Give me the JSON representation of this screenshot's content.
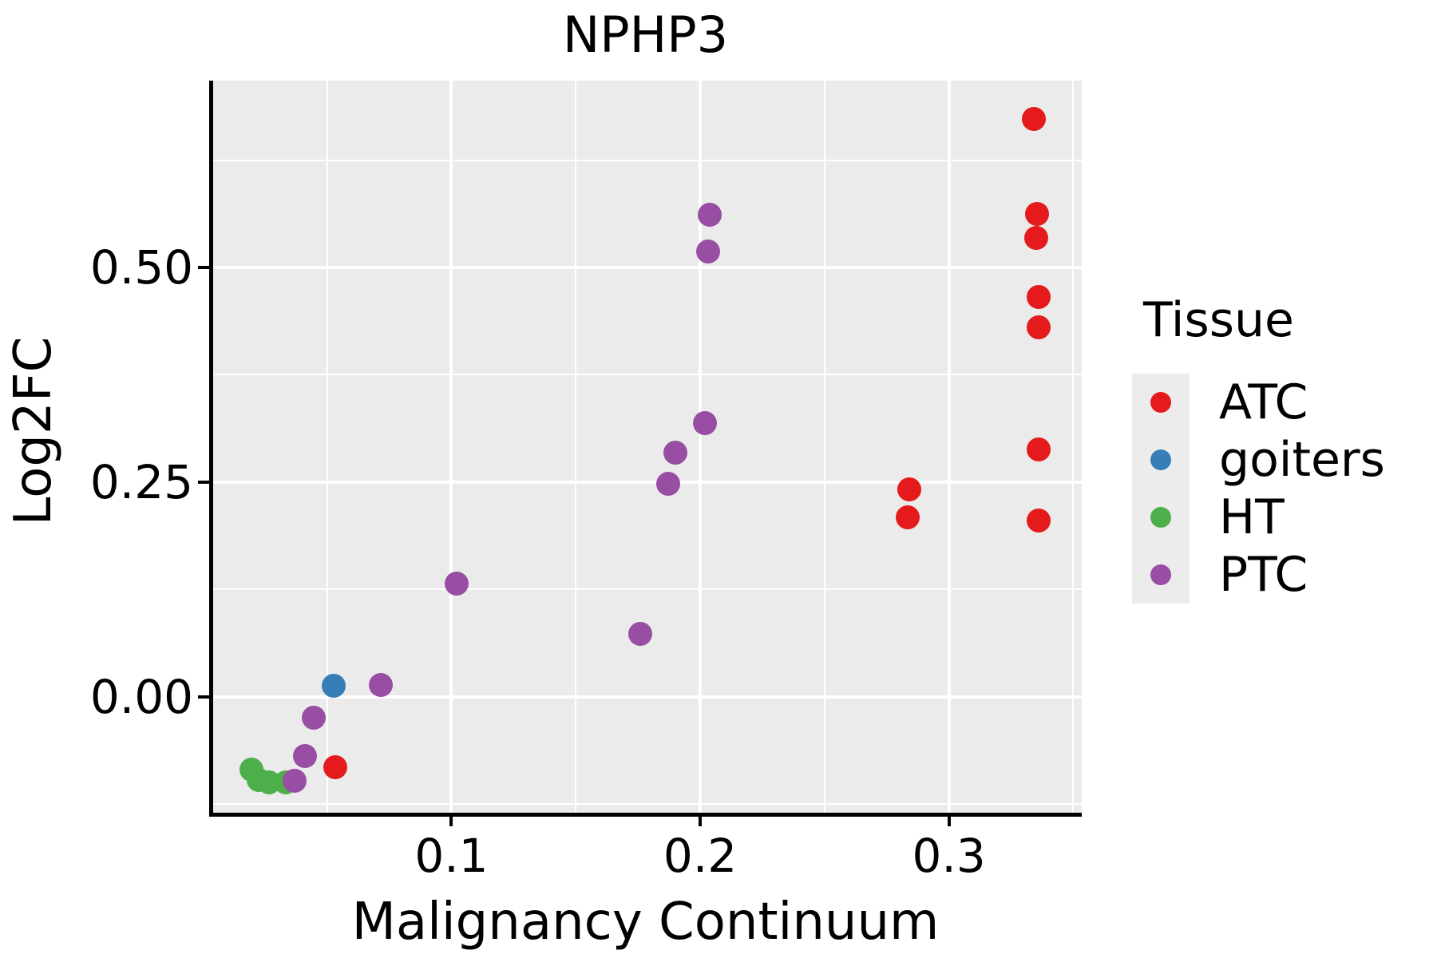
{
  "chart_data": {
    "type": "scatter",
    "title": "NPHP3",
    "xlabel": "Malignancy Continuum",
    "ylabel": "Log2FC",
    "x_range": [
      0.0042,
      0.3534
    ],
    "y_range": [
      -0.1348,
      0.7175
    ],
    "x_ticks": {
      "values": [
        0.1,
        0.2,
        0.3
      ],
      "labels": [
        "0.1",
        "0.2",
        "0.3"
      ]
    },
    "x_minor": [
      0.05,
      0.15,
      0.25,
      0.35
    ],
    "y_ticks": {
      "values": [
        0.0,
        0.25,
        0.5
      ],
      "labels": [
        "0.00",
        "0.25",
        "0.50"
      ]
    },
    "y_minor": [
      -0.125,
      0.125,
      0.375,
      0.625
    ],
    "grid": "on",
    "legend": {
      "title": "Tissue",
      "position": "right"
    },
    "series": [
      {
        "name": "ATC",
        "color": "#E41A1C",
        "points": [
          [
            0.334,
            0.673
          ],
          [
            0.3355,
            0.562
          ],
          [
            0.335,
            0.534
          ],
          [
            0.336,
            0.466
          ],
          [
            0.336,
            0.43
          ],
          [
            0.336,
            0.288
          ],
          [
            0.336,
            0.205
          ],
          [
            0.284,
            0.242
          ],
          [
            0.2835,
            0.209
          ],
          [
            0.0533,
            -0.082
          ]
        ]
      },
      {
        "name": "goiters",
        "color": "#377EB8",
        "points": [
          [
            0.0527,
            0.013
          ]
        ]
      },
      {
        "name": "HT",
        "color": "#4DAF4A",
        "points": [
          [
            0.0196,
            -0.0846
          ],
          [
            0.0225,
            -0.0967
          ],
          [
            0.0266,
            -0.0994
          ],
          [
            0.0334,
            -0.0994
          ]
        ]
      },
      {
        "name": "PTC",
        "color": "#984EA3",
        "points": [
          [
            0.0716,
            0.0139
          ],
          [
            0.0446,
            -0.0242
          ],
          [
            0.0411,
            -0.0688
          ],
          [
            0.0369,
            -0.0976
          ],
          [
            0.102,
            0.132
          ],
          [
            0.176,
            0.0734
          ],
          [
            0.1872,
            0.2481
          ],
          [
            0.19,
            0.2844
          ],
          [
            0.2019,
            0.3188
          ],
          [
            0.2032,
            0.5186
          ],
          [
            0.2038,
            0.561
          ]
        ]
      }
    ],
    "style": {
      "panel_bg": "#EBEBEB",
      "grid_color": "#FFFFFF",
      "axis_color": "#000000",
      "point_diameter": 30,
      "major_grid_width": 4,
      "minor_grid_width": 2,
      "tick_length": 14
    }
  }
}
